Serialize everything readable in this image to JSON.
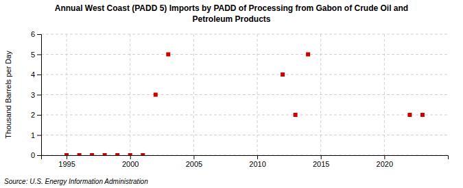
{
  "chart_data": {
    "type": "scatter",
    "title": "Annual West Coast (PADD 5) Imports by PADD of Processing from Gabon of Crude Oil and\nPetroleum Products",
    "ylabel": "Thousand Barrels per Day",
    "annotations": [
      "Source: U.S. Energy Information Administration"
    ],
    "x": [
      1995,
      1996,
      1997,
      1998,
      1999,
      2000,
      2001,
      2002,
      2003,
      2012,
      2013,
      2014,
      2022,
      2023
    ],
    "values": [
      0,
      0,
      0,
      0,
      0,
      0,
      0,
      3,
      5,
      4,
      2,
      5,
      2,
      2
    ],
    "color": "#cc0000",
    "marker": "square",
    "xlim": [
      1993,
      2025
    ],
    "ylim": [
      0,
      6
    ],
    "xticks": [
      1995,
      2000,
      2005,
      2010,
      2015,
      2020
    ],
    "yticks": [
      0,
      1,
      2,
      3,
      4,
      5,
      6
    ],
    "grid": true
  }
}
